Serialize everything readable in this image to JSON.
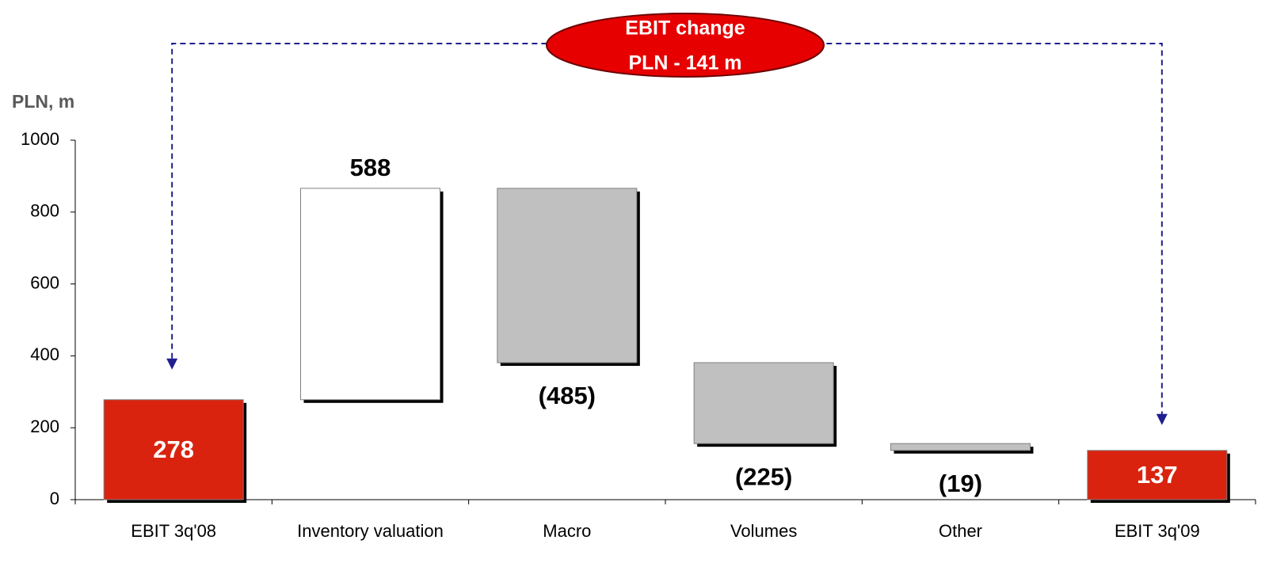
{
  "chart_data": {
    "type": "waterfall",
    "annotation": [
      "EBIT change",
      "PLN - 141 m"
    ],
    "y_label": "PLN, m",
    "categories": [
      "EBIT 3q'08",
      "Inventory valuation",
      "Macro",
      "Volumes",
      "Other",
      "EBIT 3q'09"
    ],
    "values": [
      278,
      588,
      -485,
      -225,
      -19,
      137
    ],
    "value_labels": [
      "278",
      "588",
      "(485)",
      "(225)",
      "(19)",
      "137"
    ],
    "is_total": [
      true,
      false,
      false,
      false,
      false,
      true
    ],
    "colors": [
      "#d9230f",
      "#ffffff",
      "#c0c0c0",
      "#c0c0c0",
      "#c0c0c0",
      "#d9230f"
    ],
    "ylim": [
      0,
      1000
    ],
    "yticks": [
      0,
      200,
      400,
      600,
      800,
      1000
    ]
  }
}
